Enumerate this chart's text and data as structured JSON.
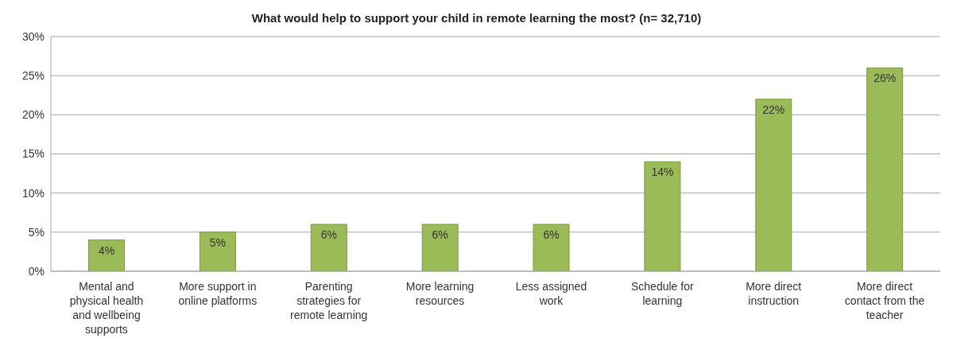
{
  "chart_data": {
    "type": "bar",
    "title": "What would help to support your child in remote learning the most? (n= 32,710)",
    "categories": [
      "Mental and physical health and wellbeing supports",
      "More support in online platforms",
      "Parenting strategies for remote learning",
      "More learning resources",
      "Less assigned work",
      "Schedule for learning",
      "More direct instruction",
      "More direct contact from the teacher"
    ],
    "values": [
      4,
      5,
      6,
      6,
      6,
      14,
      22,
      26
    ],
    "value_labels": [
      "4%",
      "5%",
      "6%",
      "6%",
      "6%",
      "14%",
      "22%",
      "26%"
    ],
    "color": "#9bbb59",
    "ylim": [
      0,
      30
    ],
    "yticks": [
      {
        "value": 0,
        "label": "0%"
      },
      {
        "value": 5,
        "label": "5%"
      },
      {
        "value": 10,
        "label": "10%"
      },
      {
        "value": 15,
        "label": "15%"
      },
      {
        "value": 20,
        "label": "20%"
      },
      {
        "value": 25,
        "label": "25%"
      },
      {
        "value": 30,
        "label": "30%"
      }
    ],
    "grid": "y",
    "legend": false
  }
}
